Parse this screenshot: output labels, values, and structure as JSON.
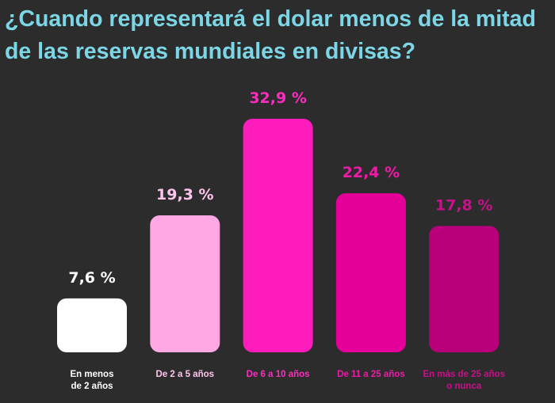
{
  "chart_data": {
    "type": "bar",
    "title": "¿Cuando representará el dolar menos de la mitad de las reservas mundiales en divisas?",
    "categories": [
      "En menos de 2 años",
      "De 2 a 5 años",
      "De 6 a 10 años",
      "De 11 a 25 años",
      "En más de 25 años o nunca"
    ],
    "category_lines": [
      [
        "En menos",
        "de 2 años"
      ],
      [
        "De 2 a 5 años"
      ],
      [
        "De 6 a 10 años"
      ],
      [
        "De 11 a 25 años"
      ],
      [
        "En más de 25 años",
        "o nunca"
      ]
    ],
    "values": [
      7.6,
      19.3,
      32.9,
      22.4,
      17.8
    ],
    "value_labels": [
      "7,6 %",
      "19,3 %",
      "32,9 %",
      "22,4 %",
      "17,8 %"
    ],
    "bar_colors": [
      "#ffffff",
      "#ffa8e4",
      "#ff1cbc",
      "#e6009a",
      "#b8007a"
    ],
    "label_colors": [
      "#ffffff",
      "#ffc4ee",
      "#ff2cc0",
      "#f01aa8",
      "#c8108a"
    ],
    "ylim": [
      0,
      32.9
    ],
    "grid": false,
    "legend": "none"
  },
  "colors": {
    "background": "#2c2c2c",
    "title": "#7dd6e6"
  }
}
